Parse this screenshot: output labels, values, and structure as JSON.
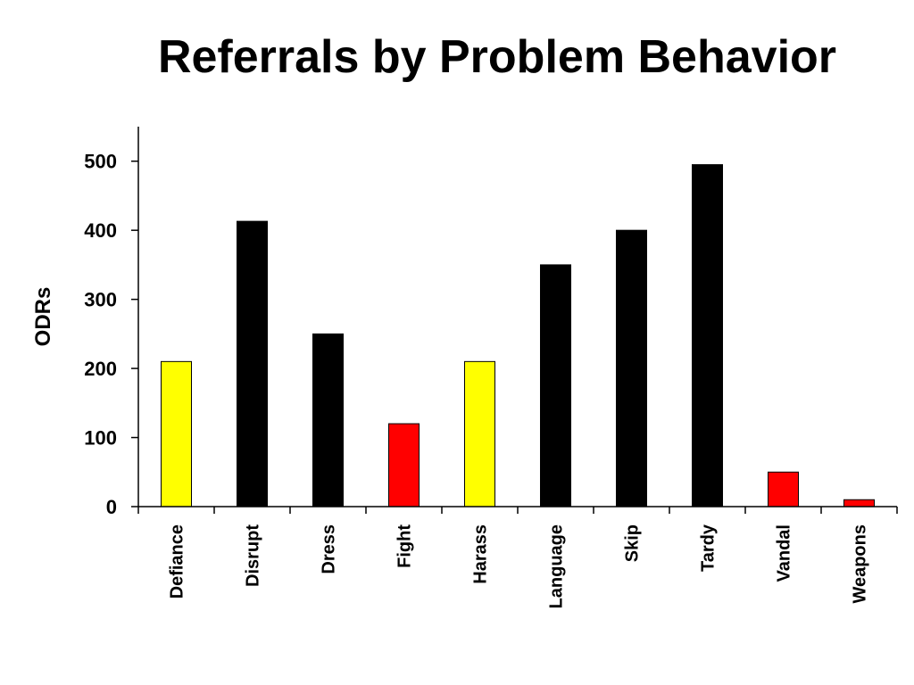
{
  "chart_data": {
    "type": "bar",
    "title": "Referrals by Problem Behavior",
    "xlabel": "",
    "ylabel": "ODRs",
    "ylim": [
      0,
      550
    ],
    "yticks": [
      0,
      100,
      200,
      300,
      400,
      500
    ],
    "grid": false,
    "legend": "none",
    "categories": [
      "Defiance",
      "Disrupt",
      "Dress",
      "Fight",
      "Harass",
      "Language",
      "Skip",
      "Tardy",
      "Vandal",
      "Weapons"
    ],
    "values": [
      210,
      413,
      250,
      120,
      210,
      350,
      400,
      495,
      50,
      10
    ],
    "bar_colors": [
      "#ffff00",
      "#000000",
      "#000000",
      "#ff0000",
      "#ffff00",
      "#000000",
      "#000000",
      "#000000",
      "#ff0000",
      "#ff0000"
    ]
  }
}
